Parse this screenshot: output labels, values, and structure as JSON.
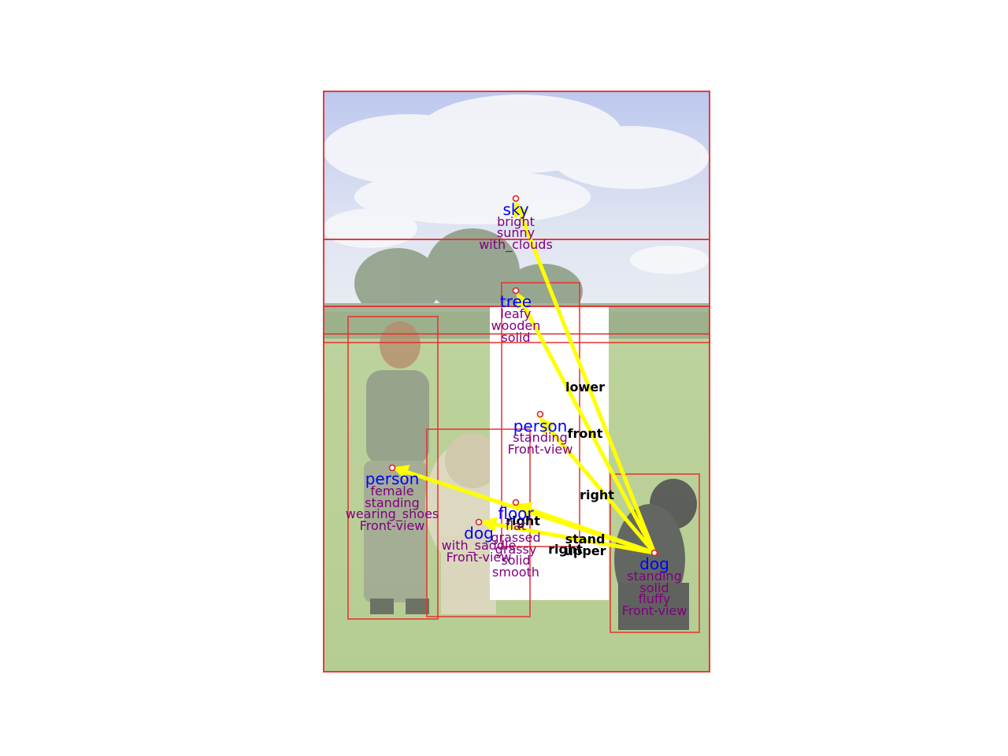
{
  "colors": {
    "box": "#e53030",
    "object_label": "#0000ff",
    "attribute_label": "#800080",
    "relation_label": "#000000",
    "arrow": "#ffff00"
  },
  "objects": [
    {
      "id": "sky",
      "label": "sky",
      "attributes": [
        "bright",
        "sunny",
        "with_clouds"
      ]
    },
    {
      "id": "tree",
      "label": "tree",
      "attributes": [
        "leafy",
        "wooden",
        "solid"
      ]
    },
    {
      "id": "person_center",
      "label": "person",
      "attributes": [
        "standing",
        "Front-view"
      ]
    },
    {
      "id": "person_left",
      "label": "person",
      "attributes": [
        "female",
        "standing",
        "wearing_shoes",
        "Front-view"
      ]
    },
    {
      "id": "floor",
      "label": "floor",
      "attributes": [
        "flat",
        "grassed",
        "grassy",
        "solid",
        "smooth"
      ]
    },
    {
      "id": "dog_white",
      "label": "dog",
      "attributes": [
        "with_saddle",
        "Front-view"
      ]
    },
    {
      "id": "dog_black",
      "label": "dog",
      "attributes": [
        "standing",
        "solid",
        "fluffy",
        "Front-view"
      ]
    }
  ],
  "relations": [
    {
      "from": "dog_black",
      "to": "sky",
      "label": "lower"
    },
    {
      "from": "dog_black",
      "to": "tree",
      "label": "front"
    },
    {
      "from": "dog_black",
      "to": "person_center",
      "label": "right"
    },
    {
      "from": "dog_black",
      "to": "person_left",
      "label": "right"
    },
    {
      "from": "dog_black",
      "to": "floor",
      "label": "stand"
    },
    {
      "from": "dog_black",
      "to": "dog_white",
      "label": "right"
    },
    {
      "from": "dog_black",
      "to": "floor",
      "label": "upper"
    }
  ]
}
